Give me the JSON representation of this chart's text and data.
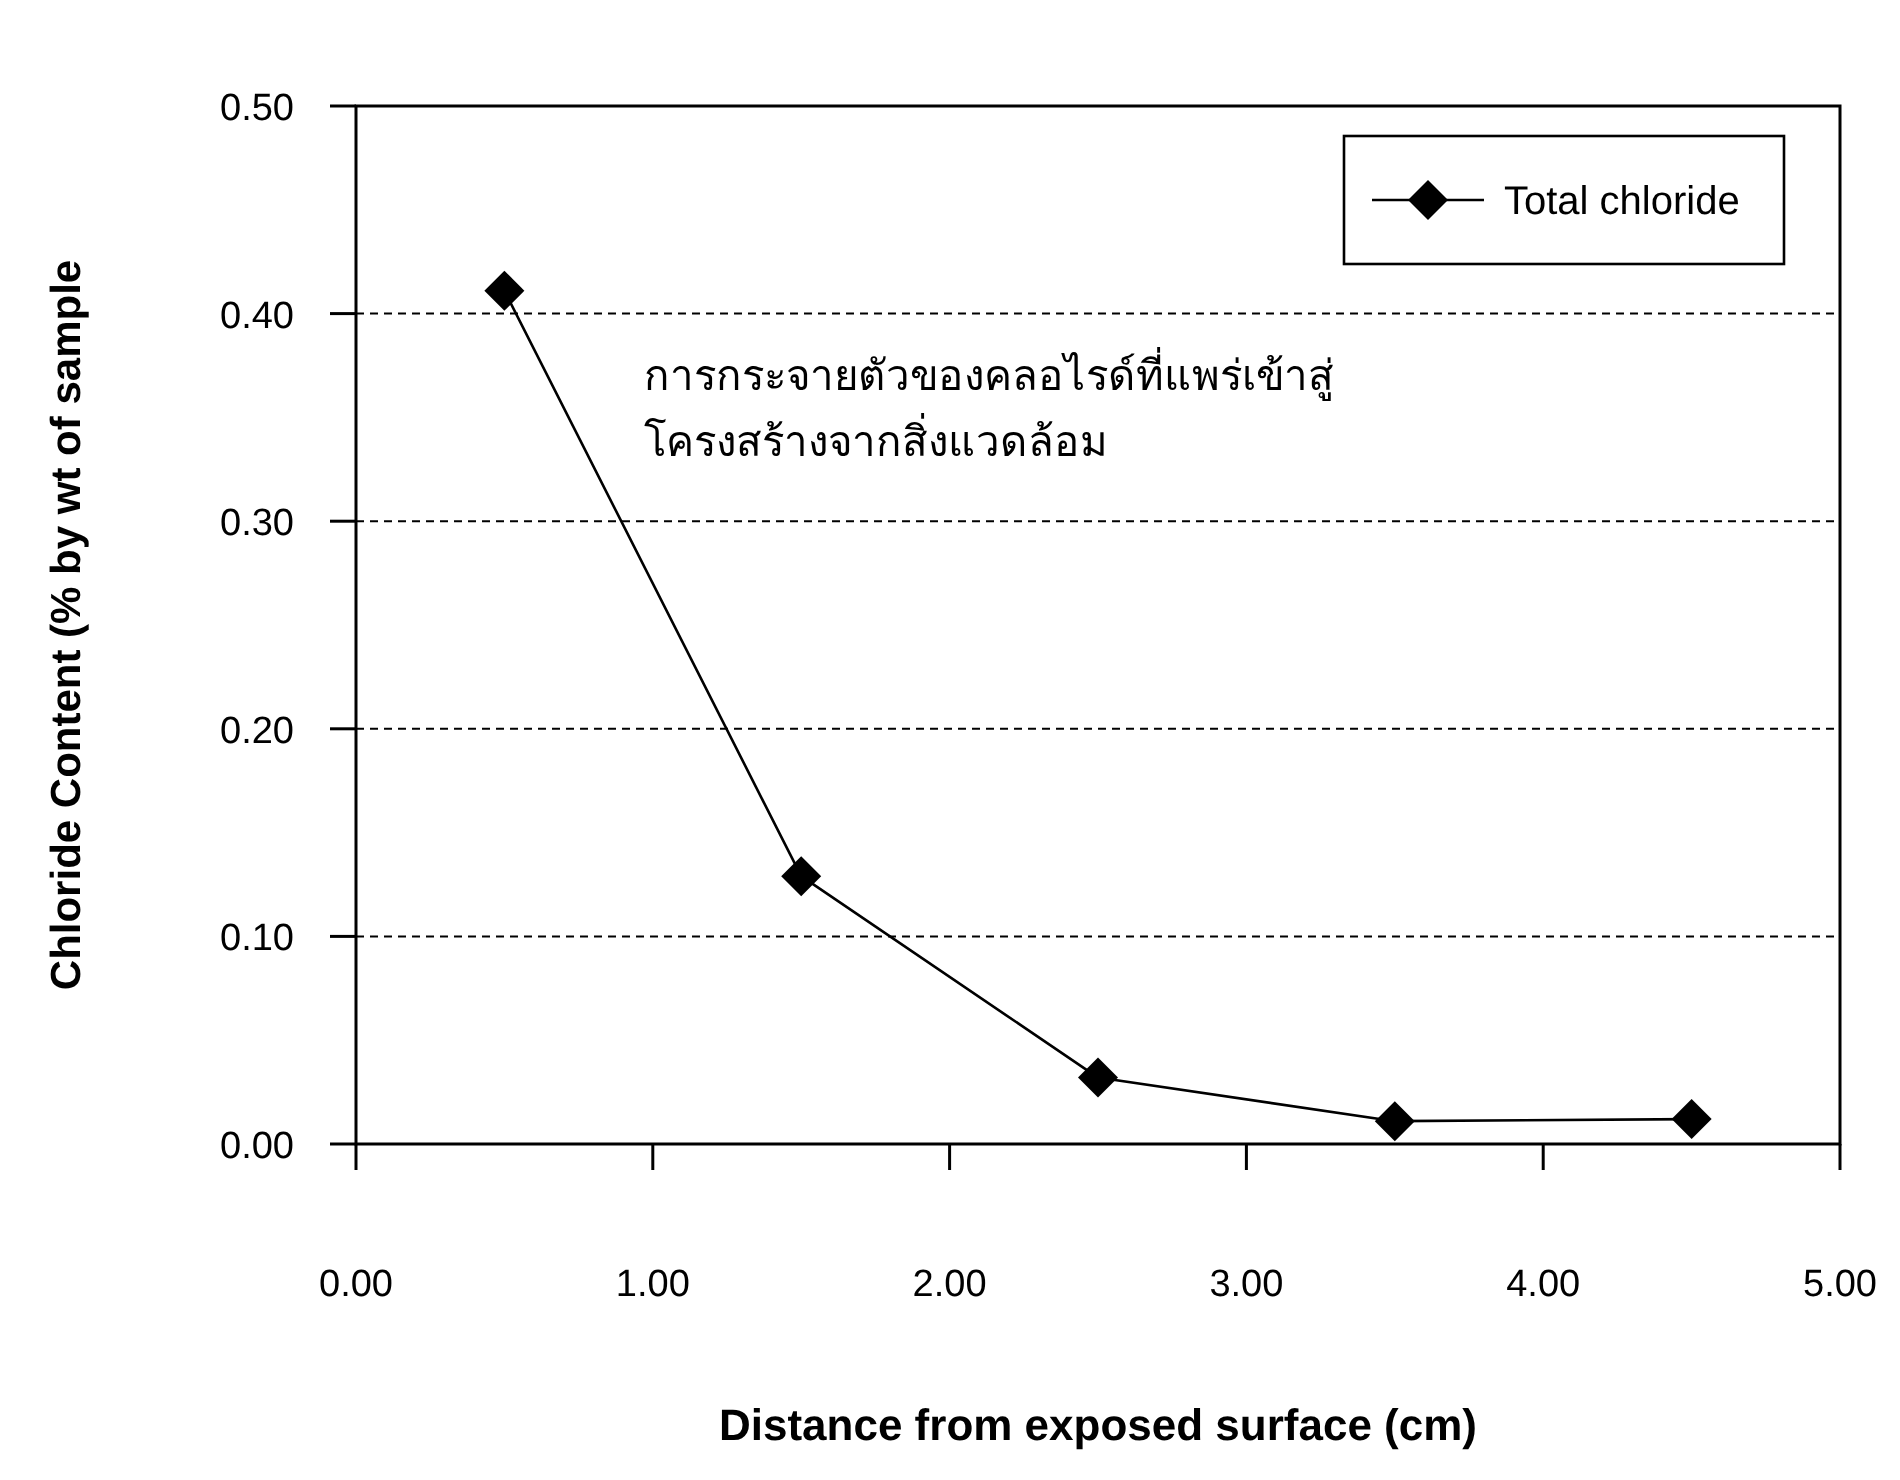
{
  "chart_data": {
    "type": "line",
    "xlabel": "Distance from exposed surface (cm)",
    "ylabel": "Chloride Content (% by wt of sample",
    "x": [
      0.5,
      1.5,
      2.5,
      3.5,
      4.5
    ],
    "series": [
      {
        "name": "Total chloride",
        "color": "#000000",
        "values": [
          0.411,
          0.129,
          0.032,
          0.011,
          0.012
        ]
      }
    ],
    "xlim": [
      0,
      5
    ],
    "ylim": [
      0,
      0.5
    ],
    "xticks": [
      {
        "value": 0,
        "label": "0.00"
      },
      {
        "value": 1,
        "label": "1.00"
      },
      {
        "value": 2,
        "label": "2.00"
      },
      {
        "value": 3,
        "label": "3.00"
      },
      {
        "value": 4,
        "label": "4.00"
      },
      {
        "value": 5,
        "label": "5.00"
      }
    ],
    "yticks": [
      {
        "value": 0,
        "label": "0.00"
      },
      {
        "value": 0.1,
        "label": "0.10"
      },
      {
        "value": 0.2,
        "label": "0.20"
      },
      {
        "value": 0.3,
        "label": "0.30"
      },
      {
        "value": 0.4,
        "label": "0.40"
      },
      {
        "value": 0.5,
        "label": "0.50"
      }
    ],
    "grid": "y",
    "legend": "top right",
    "marker": "diamond",
    "line_style": "solid",
    "annotations": [
      "การกระจายตัวของคลอไรด์ที่แพร่เข้าสู่\nโครงสร้างจากสิ่งแวดล้อม"
    ]
  }
}
